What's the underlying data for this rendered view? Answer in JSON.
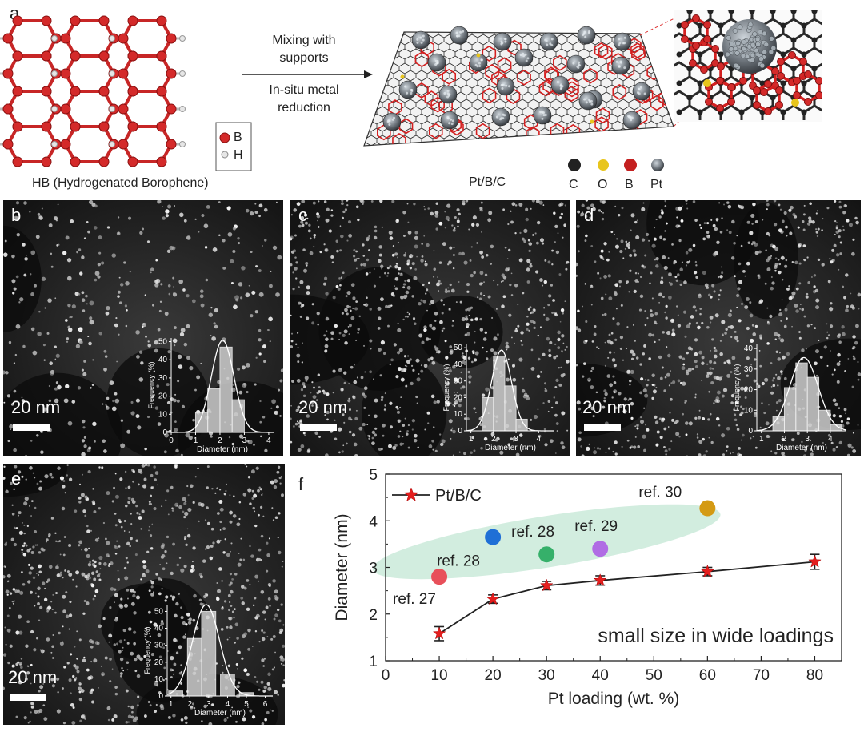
{
  "panel_a": {
    "label": "a",
    "arrow_top_text_line1": "Mixing with",
    "arrow_top_text_line2": "supports",
    "arrow_bottom_text_line1": "In-situ metal",
    "arrow_bottom_text_line2": "reduction",
    "legend_top": [
      {
        "symbol": "B",
        "color": "#d42a2a"
      },
      {
        "symbol": "H",
        "color": "#d8d8d8"
      }
    ],
    "caption_left": "HB (Hydrogenated Borophene)",
    "caption_right": "Pt/B/C",
    "legend_bottom": [
      {
        "symbol": "C",
        "color": "#222222"
      },
      {
        "symbol": "O",
        "color": "#e8c51c"
      },
      {
        "symbol": "B",
        "color": "#c42020"
      },
      {
        "symbol": "Pt",
        "color": "#8a8f96"
      }
    ]
  },
  "micrographs": [
    {
      "label": "b",
      "scale": "20 nm",
      "chart_data": {
        "type": "bar",
        "xlabel": "Diameter (nm)",
        "ylabel": "Frequency (%)",
        "xticks": [
          "0",
          "1",
          "2",
          "3",
          "4"
        ],
        "yticks": [
          "0",
          "10",
          "20",
          "30",
          "40",
          "50"
        ],
        "xlim": [
          0,
          4.2
        ],
        "ylim": [
          0,
          52
        ],
        "bin_centers": [
          1.25,
          1.75,
          2.25,
          2.75,
          3.25
        ],
        "bin_width": 0.5,
        "values": [
          11,
          24,
          47,
          18,
          0
        ]
      }
    },
    {
      "label": "c",
      "scale": "20 nm",
      "chart_data": {
        "type": "bar",
        "xlabel": "Diameter (nm)",
        "ylabel": "Frequency (%)",
        "xticks": [
          "1",
          "2",
          "3",
          "4"
        ],
        "yticks": [
          "0",
          "10",
          "20",
          "30",
          "40",
          "50"
        ],
        "xlim": [
          0.8,
          4.7
        ],
        "ylim": [
          0,
          52
        ],
        "bin_centers": [
          1.75,
          2.25,
          2.75,
          3.25,
          3.75
        ],
        "bin_width": 0.5,
        "values": [
          20,
          45,
          27,
          7,
          0
        ]
      }
    },
    {
      "label": "d",
      "scale": "20 nm",
      "chart_data": {
        "type": "bar",
        "xlabel": "Diameter (nm)",
        "ylabel": "Frequency (%)",
        "xticks": [
          "1",
          "2",
          "3",
          "4"
        ],
        "yticks": [
          "0",
          "10",
          "20",
          "30",
          "40"
        ],
        "xlim": [
          0.8,
          4.7
        ],
        "ylim": [
          0,
          42
        ],
        "bin_centers": [
          1.75,
          2.25,
          2.75,
          3.25,
          3.75,
          4.25
        ],
        "bin_width": 0.5,
        "values": [
          7,
          21,
          33,
          26,
          10,
          3
        ]
      }
    },
    {
      "label": "e",
      "scale": "20 nm",
      "chart_data": {
        "type": "bar",
        "xlabel": "Diameter (nm)",
        "ylabel": "Frequency (%)",
        "xticks": [
          "1",
          "2",
          "3",
          "4",
          "5",
          "6"
        ],
        "yticks": [
          "0",
          "10",
          "20",
          "30",
          "40",
          "50"
        ],
        "xlim": [
          0.8,
          6.4
        ],
        "ylim": [
          0,
          54
        ],
        "bin_centers": [
          1.25,
          2.25,
          3.0,
          4.0,
          5.0
        ],
        "bin_width": 0.75,
        "values": [
          3,
          34,
          50,
          13,
          2
        ]
      }
    }
  ],
  "panel_f": {
    "label": "f",
    "chart_data": {
      "type": "line",
      "xlabel": "Pt loading (wt. %)",
      "ylabel": "Diameter (nm)",
      "xlim": [
        0,
        85
      ],
      "ylim": [
        1,
        5
      ],
      "xticks": [
        "0",
        "10",
        "20",
        "30",
        "40",
        "50",
        "60",
        "70",
        "80"
      ],
      "yticks": [
        "1",
        "2",
        "3",
        "4",
        "5"
      ],
      "legend": "Pt/B/C",
      "series": [
        {
          "name": "Pt/B/C",
          "color": "#e41e1e",
          "x": [
            10,
            20,
            30,
            40,
            60,
            80
          ],
          "y": [
            1.58,
            2.32,
            2.61,
            2.72,
            2.91,
            3.12
          ],
          "error": [
            0.15,
            0.09,
            0.09,
            0.1,
            0.09,
            0.16
          ]
        }
      ],
      "references": [
        {
          "label": "ref. 27",
          "x": 10,
          "y": 2.8,
          "color": "#e8505a"
        },
        {
          "label": "ref. 28",
          "x": 20,
          "y": 3.65,
          "color": "#1f6fd6"
        },
        {
          "label": "ref. 28",
          "x": 30,
          "y": 3.28,
          "color": "#36b06a"
        },
        {
          "label": "ref. 29",
          "x": 40,
          "y": 3.4,
          "color": "#b06ce4"
        },
        {
          "label": "ref. 30",
          "x": 60,
          "y": 4.27,
          "color": "#d49a14"
        }
      ],
      "annotation": "small size in wide loadings",
      "highlight_color": "#cdebdc"
    }
  }
}
